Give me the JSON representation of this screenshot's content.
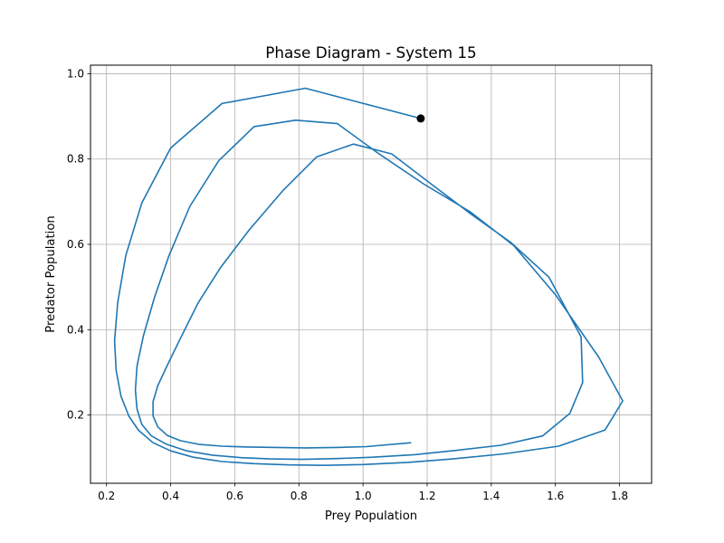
{
  "chart_data": {
    "type": "line",
    "title": "Phase Diagram - System 15",
    "xlabel": "Prey Population",
    "ylabel": "Predator Population",
    "xlim": [
      0.15,
      1.9
    ],
    "ylim": [
      0.04,
      1.02
    ],
    "xticks": [
      0.2,
      0.4,
      0.6,
      0.8,
      1.0,
      1.2,
      1.4,
      1.6,
      1.8
    ],
    "xtick_labels": [
      "0.2",
      "0.4",
      "0.6",
      "0.8",
      "1.0",
      "1.2",
      "1.4",
      "1.6",
      "1.8"
    ],
    "yticks": [
      0.2,
      0.4,
      0.6,
      0.8,
      1.0
    ],
    "ytick_labels": [
      "0.2",
      "0.4",
      "0.6",
      "0.8",
      "1.0"
    ],
    "grid": true,
    "line_color": "#1f77b4",
    "marker_color": "#000000",
    "series": [
      {
        "x": [
          1.18,
          0.82,
          0.56,
          0.4,
          0.31,
          0.26,
          0.235,
          0.225,
          0.23,
          0.245,
          0.27,
          0.3,
          0.345,
          0.4,
          0.47,
          0.56,
          0.66,
          0.77,
          0.88,
          1.0,
          1.14,
          1.28,
          1.44,
          1.61,
          1.755,
          1.81,
          1.735,
          1.6,
          1.47,
          1.335,
          1.19,
          1.05,
          0.92,
          0.79,
          0.66,
          0.55,
          0.46,
          0.395,
          0.35,
          0.315,
          0.295,
          0.29,
          0.295,
          0.31,
          0.34,
          0.385,
          0.45,
          0.53,
          0.62,
          0.71,
          0.81,
          0.92,
          1.03,
          1.16,
          1.29,
          1.43,
          1.56,
          1.645,
          1.685,
          1.68,
          1.58,
          1.46,
          1.335,
          1.21,
          1.09,
          0.97,
          0.855,
          0.75,
          0.645,
          0.555,
          0.485,
          0.43,
          0.39,
          0.36,
          0.345,
          0.345,
          0.36,
          0.39,
          0.43,
          0.49,
          0.56,
          0.64,
          0.73,
          0.82,
          0.92,
          1.01,
          1.15
        ],
        "y": [
          0.895,
          0.966,
          0.93,
          0.826,
          0.697,
          0.574,
          0.464,
          0.374,
          0.305,
          0.244,
          0.197,
          0.164,
          0.135,
          0.116,
          0.101,
          0.091,
          0.086,
          0.083,
          0.082,
          0.084,
          0.089,
          0.097,
          0.109,
          0.127,
          0.165,
          0.233,
          0.336,
          0.482,
          0.597,
          0.676,
          0.741,
          0.812,
          0.883,
          0.891,
          0.876,
          0.796,
          0.689,
          0.574,
          0.477,
          0.386,
          0.315,
          0.258,
          0.214,
          0.178,
          0.151,
          0.132,
          0.116,
          0.106,
          0.1,
          0.097,
          0.096,
          0.098,
          0.101,
          0.107,
          0.117,
          0.129,
          0.151,
          0.204,
          0.276,
          0.383,
          0.523,
          0.605,
          0.672,
          0.743,
          0.812,
          0.835,
          0.805,
          0.726,
          0.634,
          0.545,
          0.462,
          0.379,
          0.317,
          0.269,
          0.231,
          0.198,
          0.172,
          0.152,
          0.14,
          0.131,
          0.127,
          0.125,
          0.124,
          0.123,
          0.124,
          0.126,
          0.135
        ]
      }
    ],
    "marker": {
      "x": 1.18,
      "y": 0.895
    }
  }
}
